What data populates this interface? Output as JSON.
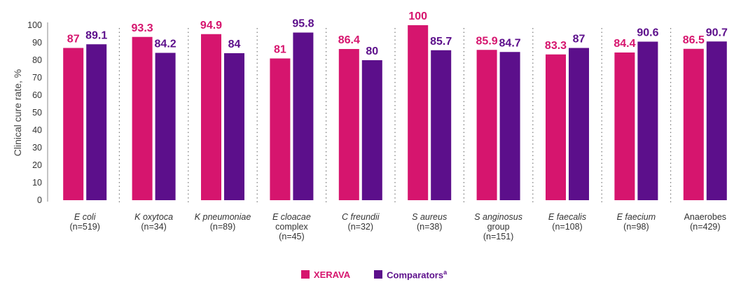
{
  "chart_data": {
    "type": "bar",
    "ylabel": "Clinical cure rate, %",
    "ylim": [
      0,
      100
    ],
    "yticks": [
      0,
      10,
      20,
      30,
      40,
      50,
      60,
      70,
      80,
      90,
      100
    ],
    "categories": [
      {
        "lines": [
          "E coli",
          "(n=519)"
        ],
        "italic_first_line": true
      },
      {
        "lines": [
          "K oxytoca",
          "(n=34)"
        ],
        "italic_first_line": true
      },
      {
        "lines": [
          "K pneumoniae",
          "(n=89)"
        ],
        "italic_first_line": true
      },
      {
        "lines": [
          "E cloacae",
          "complex",
          "(n=45)"
        ],
        "italic_first_line": true
      },
      {
        "lines": [
          "C freundii",
          "(n=32)"
        ],
        "italic_first_line": true
      },
      {
        "lines": [
          "S aureus",
          "(n=38)"
        ],
        "italic_first_line": true
      },
      {
        "lines": [
          "S anginosus",
          "group",
          "(n=151)"
        ],
        "italic_first_line": true
      },
      {
        "lines": [
          "E faecalis",
          "(n=108)"
        ],
        "italic_first_line": true
      },
      {
        "lines": [
          "E faecium",
          "(n=98)"
        ],
        "italic_first_line": true
      },
      {
        "lines": [
          "Anaerobes",
          "(n=429)"
        ],
        "italic_first_line": false
      }
    ],
    "series": [
      {
        "name": "XERAVA",
        "color": "#d6156e",
        "values": [
          87,
          93.3,
          94.9,
          81,
          86.4,
          100,
          85.9,
          83.3,
          84.4,
          86.5
        ]
      },
      {
        "name": "Comparators",
        "superscript": "a",
        "color": "#5c0f8b",
        "values": [
          89.1,
          84.2,
          84,
          95.8,
          80,
          85.7,
          84.7,
          87,
          90.6,
          90.7
        ]
      }
    ],
    "grid": false,
    "separators": "dotted",
    "legend_position": "bottom-center"
  }
}
